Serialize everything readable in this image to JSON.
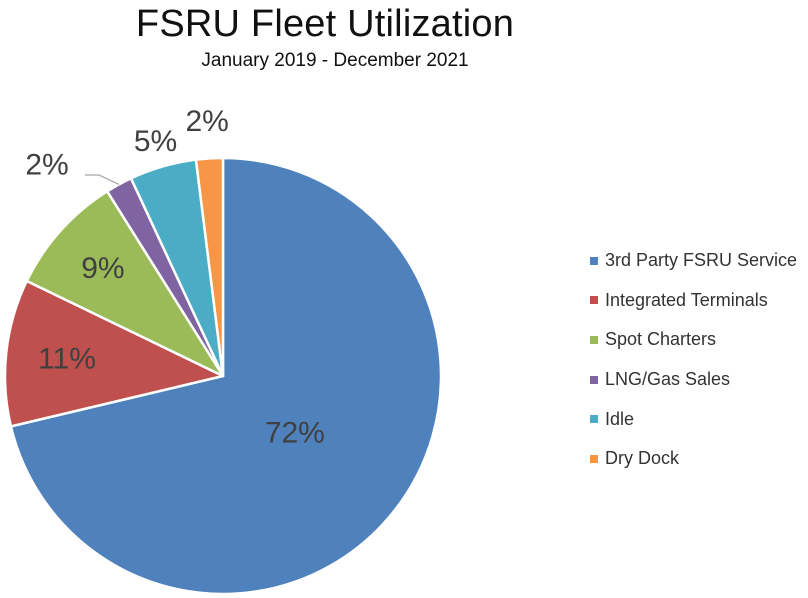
{
  "chart_data": {
    "type": "pie",
    "title": "FSRU Fleet Utilization",
    "subtitle": "January 2019 - December 2021",
    "slices": [
      {
        "label": "3rd Party FSRU Service",
        "value": 72,
        "display": "72%",
        "color": "#4F81BD"
      },
      {
        "label": "Integrated Terminals",
        "value": 11,
        "display": "11%",
        "color": "#C0504D"
      },
      {
        "label": "Spot Charters",
        "value": 9,
        "display": "9%",
        "color": "#9BBB59"
      },
      {
        "label": "LNG/Gas Sales",
        "value": 2,
        "display": "2%",
        "color": "#8064A2"
      },
      {
        "label": "Idle",
        "value": 5,
        "display": "5%",
        "color": "#4BACC6"
      },
      {
        "label": "Dry Dock",
        "value": 2,
        "display": "2%",
        "color": "#F79646"
      }
    ],
    "legend_position": "right"
  }
}
